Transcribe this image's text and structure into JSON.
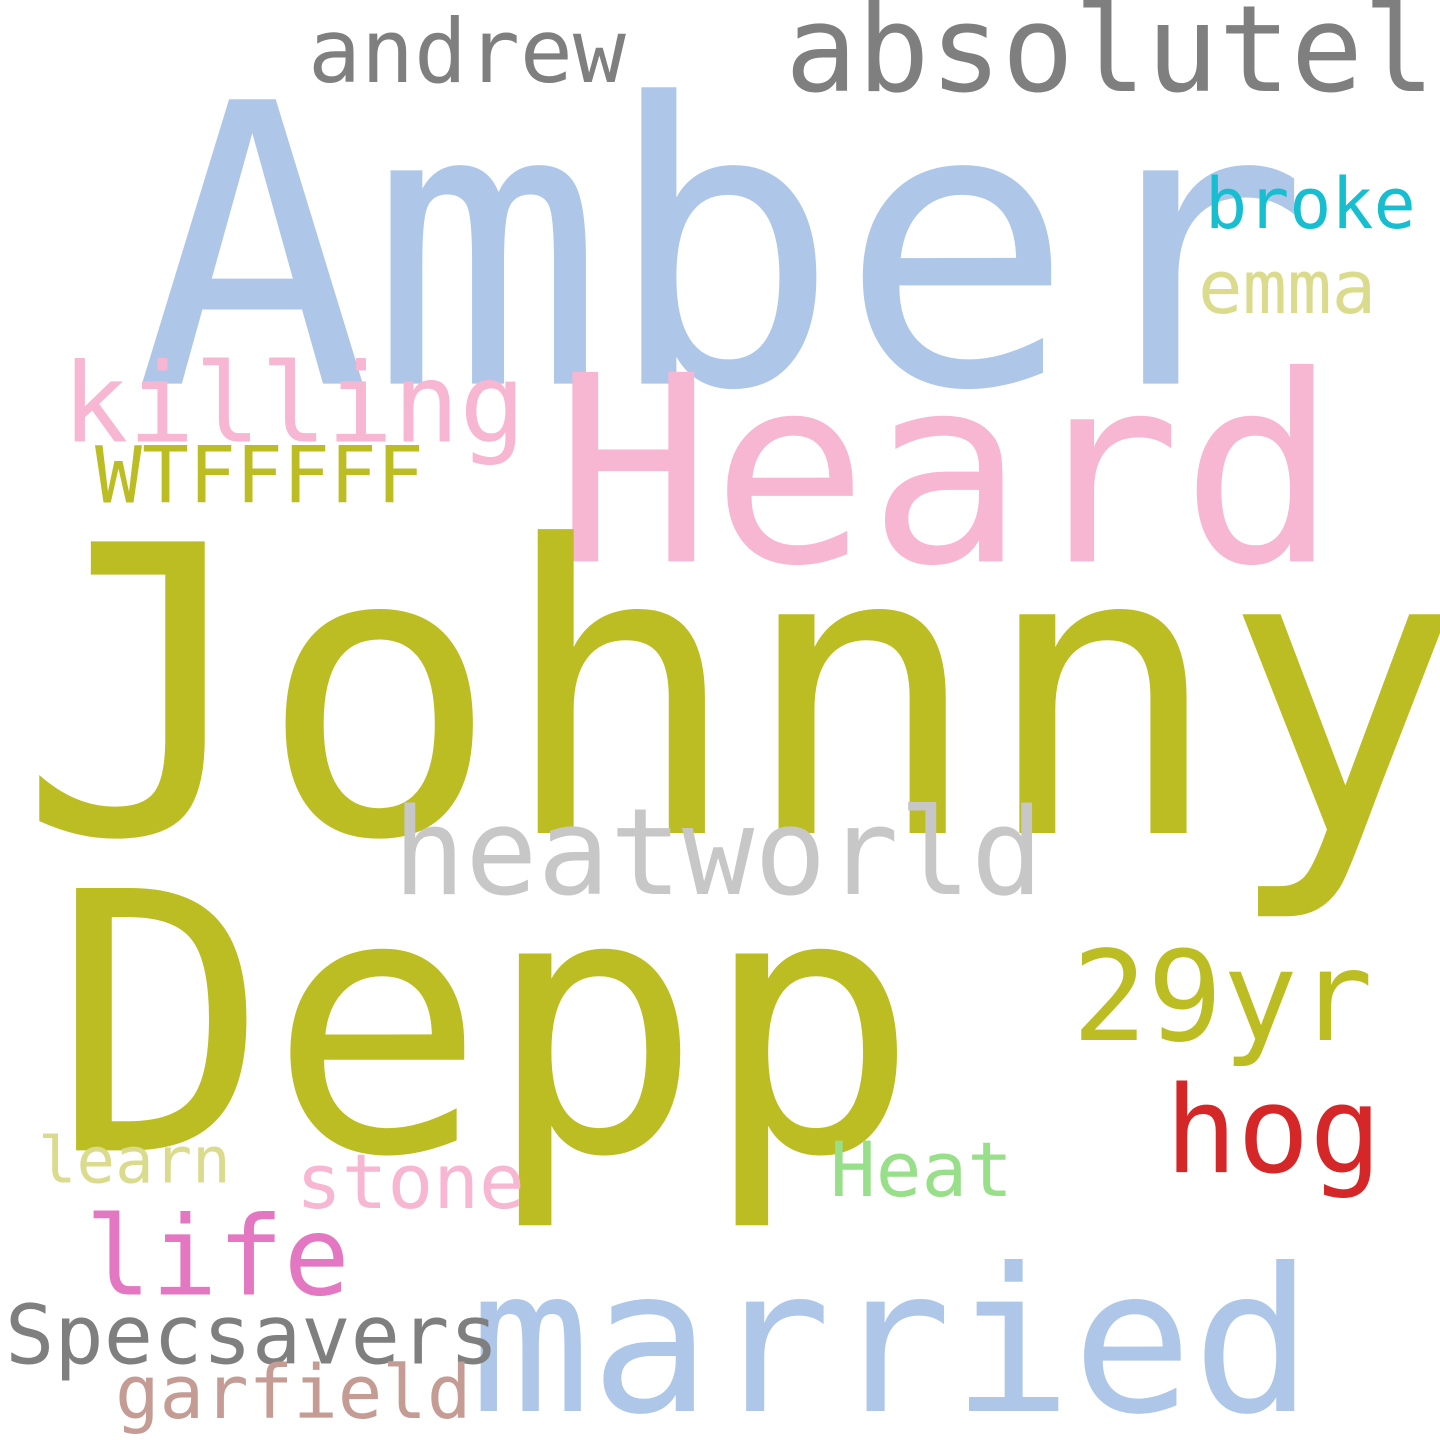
{
  "words": [
    {
      "text": "Amber",
      "color": "#aec7e8"
    },
    {
      "text": "Heard",
      "color": "#f7b6d2"
    },
    {
      "text": "Johnny",
      "color": "#bcbd22"
    },
    {
      "text": "Depp",
      "color": "#bcbd22"
    },
    {
      "text": "married",
      "color": "#aec7e8"
    },
    {
      "text": "absolutely",
      "color": "#7f7f7f"
    },
    {
      "text": "andrew",
      "color": "#7f7f7f"
    },
    {
      "text": "broke",
      "color": "#17becf"
    },
    {
      "text": "emma",
      "color": "#dbdb8d"
    },
    {
      "text": "killing",
      "color": "#f7b6d2"
    },
    {
      "text": "WTFFFFF",
      "color": "#bcbd22"
    },
    {
      "text": "heatworld",
      "color": "#c7c7c7"
    },
    {
      "text": "29yr",
      "color": "#bcbd22"
    },
    {
      "text": "hog",
      "color": "#d62728"
    },
    {
      "text": "learn",
      "color": "#dbdb8d"
    },
    {
      "text": "stone",
      "color": "#f7b6d2"
    },
    {
      "text": "Heat",
      "color": "#98df8a"
    },
    {
      "text": "life",
      "color": "#e377c2"
    },
    {
      "text": "Specsavers",
      "color": "#7f7f7f"
    },
    {
      "text": "garfield",
      "color": "#c49c94"
    }
  ]
}
